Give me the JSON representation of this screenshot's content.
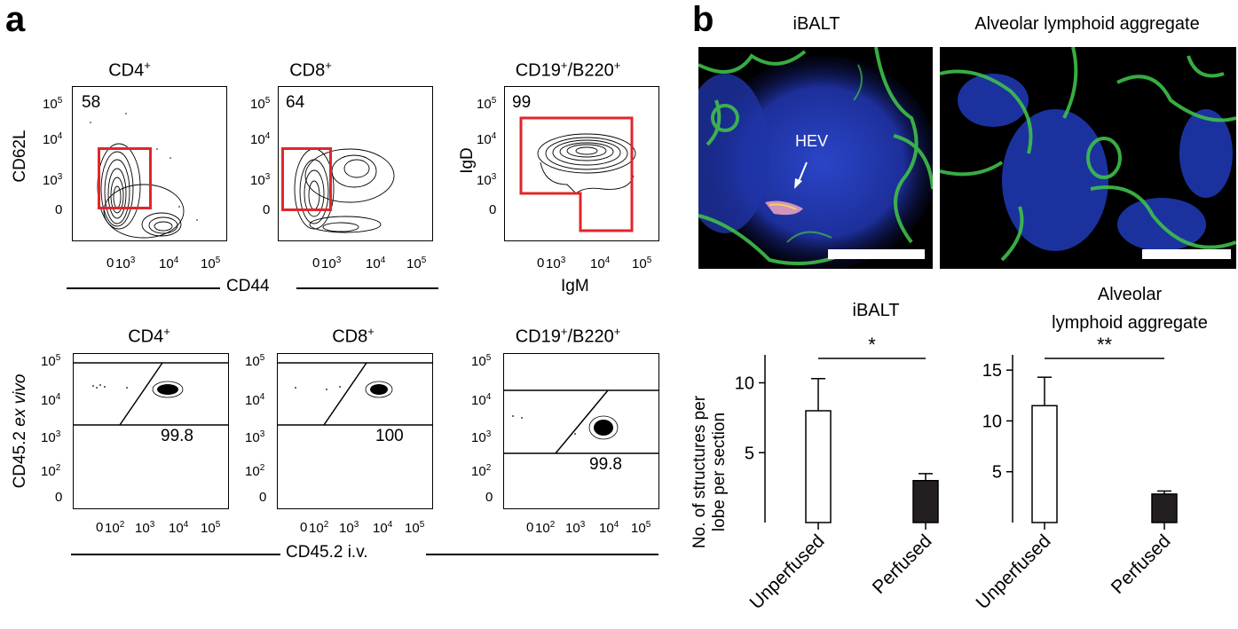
{
  "panel_a": {
    "label": "a",
    "row1": {
      "plots": [
        {
          "title": "CD4",
          "title_sup": "+",
          "percent": "58",
          "ylabel": "CD62L"
        },
        {
          "title": "CD8",
          "title_sup": "+",
          "percent": "64"
        },
        {
          "title": "CD19",
          "title_sup": "+",
          "title_rest": "/B220",
          "title_sup2": "+",
          "percent": "99",
          "ylabel": "IgD",
          "xlabel": "IgM"
        }
      ],
      "y_ticks": [
        {
          "base": "10",
          "exp": "5"
        },
        {
          "base": "10",
          "exp": "4"
        },
        {
          "base": "10",
          "exp": "3"
        },
        {
          "base": "0",
          "exp": ""
        }
      ],
      "x_ticks": [
        {
          "base": "0",
          "exp": ""
        },
        {
          "base": "10",
          "exp": "3"
        },
        {
          "base": "10",
          "exp": "4"
        },
        {
          "base": "10",
          "exp": "5"
        }
      ],
      "shared_xlabel": "CD44"
    },
    "row2": {
      "plots": [
        {
          "title": "CD4",
          "title_sup": "+",
          "percent": "99.8"
        },
        {
          "title": "CD8",
          "title_sup": "+",
          "percent": "100"
        },
        {
          "title": "CD19",
          "title_sup": "+",
          "title_rest": "/B220",
          "title_sup2": "+",
          "percent": "99.8"
        }
      ],
      "ylabel_main": "CD45.2 ",
      "ylabel_italic": "ex vivo",
      "y_ticks": [
        {
          "base": "10",
          "exp": "5"
        },
        {
          "base": "10",
          "exp": "4"
        },
        {
          "base": "10",
          "exp": "3"
        },
        {
          "base": "10",
          "exp": "2"
        },
        {
          "base": "0",
          "exp": ""
        }
      ],
      "x_ticks": [
        {
          "base": "0",
          "exp": ""
        },
        {
          "base": "10",
          "exp": "2"
        },
        {
          "base": "10",
          "exp": "3"
        },
        {
          "base": "10",
          "exp": "4"
        },
        {
          "base": "10",
          "exp": "5"
        }
      ],
      "shared_xlabel": "CD45.2 i.v."
    }
  },
  "panel_b": {
    "label": "b",
    "images": [
      {
        "title": "iBALT",
        "annotation": "HEV"
      },
      {
        "title": "Alveolar lymphoid aggregate"
      }
    ],
    "ylabel_line1": "No. of structures per",
    "ylabel_line2": "lobe per section"
  },
  "chart_data": [
    {
      "type": "bar",
      "title": "iBALT",
      "categories": [
        "Unperfused",
        "Perfused"
      ],
      "values": [
        8.0,
        3.0
      ],
      "error": [
        2.3,
        0.5
      ],
      "fills": [
        "#ffffff",
        "#231f20"
      ],
      "ylim": [
        0,
        12
      ],
      "yticks": [
        5,
        10
      ],
      "significance": "*"
    },
    {
      "type": "bar",
      "title": "Alveolar lymphoid aggregate",
      "title_lines": [
        "Alveolar",
        "lymphoid aggregate"
      ],
      "categories": [
        "Unperfused",
        "Perfused"
      ],
      "values": [
        11.5,
        2.8
      ],
      "error": [
        2.8,
        0.3
      ],
      "fills": [
        "#ffffff",
        "#231f20"
      ],
      "ylim": [
        0,
        16.5
      ],
      "yticks": [
        5,
        10,
        15
      ],
      "significance": "**"
    }
  ]
}
